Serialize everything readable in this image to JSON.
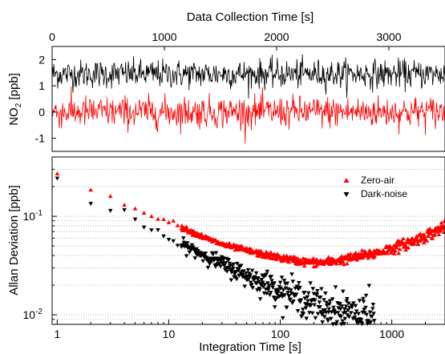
{
  "chart_data": [
    {
      "type": "line",
      "panel": "top",
      "title": "",
      "xlabel": "Data Collection Time [s]",
      "ylabel_main": "NO",
      "ylabel_sub": "2",
      "ylabel_unit": " [ppb]",
      "xlim": [
        0,
        3500
      ],
      "ylim": [
        -1.5,
        2.5
      ],
      "x_ticks": [
        0,
        1000,
        2000,
        3000
      ],
      "x_tick_labels": [
        "0",
        "1000",
        "2000",
        "3000"
      ],
      "y_ticks": [
        -1,
        0,
        1,
        2
      ],
      "y_tick_labels": [
        "-1",
        "0",
        "1",
        "2"
      ],
      "grid": false,
      "series": [
        {
          "color": "#000000",
          "mean": 1.45,
          "sd": 0.27,
          "x_start": 0,
          "x_end": 3500
        },
        {
          "color": "#ff0000",
          "mean": 0.0,
          "sd": 0.3,
          "x_start": 0,
          "x_end": 3500
        }
      ]
    },
    {
      "type": "scatter",
      "panel": "bottom",
      "title": "",
      "xlabel": "Integration Time [s]",
      "ylabel": "Allan Deviation [ppb]",
      "xscale": "log",
      "yscale": "log",
      "xlim": [
        0.9,
        3000
      ],
      "ylim": [
        0.008,
        0.4
      ],
      "x_ticks": [
        1,
        10,
        100,
        1000
      ],
      "x_tick_labels": [
        "1",
        "10",
        "100",
        "1000"
      ],
      "y_ticks": [
        0.01,
        0.1
      ],
      "y_tick_label_parts": [
        [
          "10",
          "-2"
        ],
        [
          "10",
          "-1"
        ]
      ],
      "grid": "horizontal minor dotted",
      "legend_position": "top-right",
      "series": [
        {
          "name": "Zero-air",
          "marker": "triangle-up",
          "color": "#ff0000",
          "points": [
            [
              1,
              0.27
            ],
            [
              2,
              0.185
            ],
            [
              3,
              0.155
            ],
            [
              4,
              0.135
            ],
            [
              5,
              0.122
            ],
            [
              6,
              0.112
            ],
            [
              8,
              0.098
            ],
            [
              10,
              0.088
            ],
            [
              15,
              0.072
            ],
            [
              20,
              0.062
            ],
            [
              30,
              0.052
            ],
            [
              50,
              0.045
            ],
            [
              70,
              0.041
            ],
            [
              100,
              0.038
            ],
            [
              150,
              0.035
            ],
            [
              200,
              0.034
            ],
            [
              250,
              0.034
            ],
            [
              300,
              0.035
            ],
            [
              400,
              0.037
            ],
            [
              500,
              0.039
            ],
            [
              700,
              0.042
            ],
            [
              1000,
              0.047
            ],
            [
              1500,
              0.055
            ],
            [
              2000,
              0.063
            ],
            [
              2500,
              0.071
            ],
            [
              3000,
              0.08
            ]
          ]
        },
        {
          "name": "Dark-noise",
          "marker": "triangle-down",
          "color": "#000000",
          "points": [
            [
              1,
              0.21
            ],
            [
              2,
              0.145
            ],
            [
              3,
              0.12
            ],
            [
              4,
              0.1
            ],
            [
              5,
              0.09
            ],
            [
              6,
              0.08
            ],
            [
              8,
              0.068
            ],
            [
              10,
              0.058
            ],
            [
              15,
              0.048
            ],
            [
              20,
              0.041
            ],
            [
              30,
              0.033
            ],
            [
              50,
              0.025
            ],
            [
              70,
              0.021
            ],
            [
              100,
              0.018
            ],
            [
              150,
              0.015
            ],
            [
              200,
              0.013
            ],
            [
              300,
              0.011
            ],
            [
              400,
              0.0105
            ],
            [
              500,
              0.0098
            ],
            [
              600,
              0.0094
            ],
            [
              700,
              0.009
            ]
          ]
        }
      ]
    }
  ]
}
